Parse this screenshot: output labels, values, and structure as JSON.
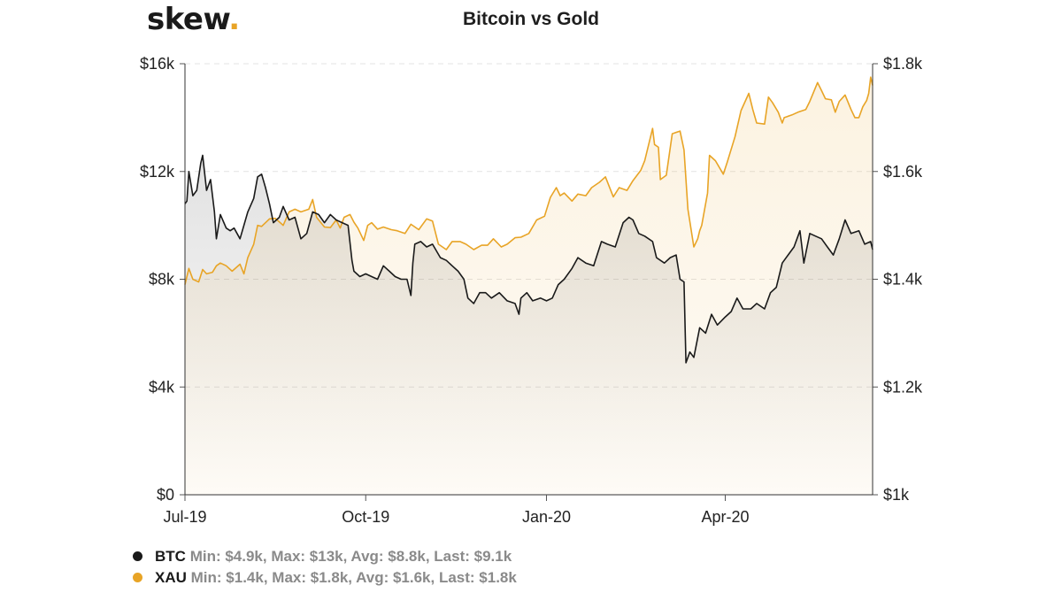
{
  "brand": {
    "name": "skew",
    "dot": ".",
    "dot_color": "#e8a426"
  },
  "chart_data": {
    "type": "line",
    "title": "Bitcoin vs Gold",
    "grid": true,
    "x_ticks": [
      "Jul-19",
      "Oct-19",
      "Jan-20",
      "Apr-20"
    ],
    "x_range": [
      "2019-07-01",
      "2020-06-15"
    ],
    "y_left": {
      "ticks": [
        "$0",
        "$4k",
        "$8k",
        "$12k",
        "$16k"
      ],
      "range": [
        0,
        16000
      ]
    },
    "y_right": {
      "ticks": [
        "$1k",
        "$1.2k",
        "$1.4k",
        "$1.6k",
        "$1.8k"
      ],
      "range": [
        1000,
        1800
      ]
    },
    "series": [
      {
        "name": "BTC",
        "axis": "left",
        "color": "#1a1a1a",
        "points": [
          [
            "2019-07-01",
            10800
          ],
          [
            "2019-07-02",
            10900
          ],
          [
            "2019-07-03",
            12000
          ],
          [
            "2019-07-05",
            11100
          ],
          [
            "2019-07-07",
            11300
          ],
          [
            "2019-07-09",
            12300
          ],
          [
            "2019-07-10",
            12600
          ],
          [
            "2019-07-12",
            11300
          ],
          [
            "2019-07-14",
            11700
          ],
          [
            "2019-07-16",
            10500
          ],
          [
            "2019-07-17",
            9500
          ],
          [
            "2019-07-19",
            10400
          ],
          [
            "2019-07-22",
            9900
          ],
          [
            "2019-07-24",
            9800
          ],
          [
            "2019-07-26",
            9900
          ],
          [
            "2019-07-29",
            9500
          ],
          [
            "2019-07-31",
            10000
          ],
          [
            "2019-08-02",
            10500
          ],
          [
            "2019-08-05",
            11000
          ],
          [
            "2019-08-07",
            11800
          ],
          [
            "2019-08-09",
            11900
          ],
          [
            "2019-08-11",
            11400
          ],
          [
            "2019-08-13",
            10800
          ],
          [
            "2019-08-15",
            10100
          ],
          [
            "2019-08-18",
            10300
          ],
          [
            "2019-08-20",
            10700
          ],
          [
            "2019-08-23",
            10200
          ],
          [
            "2019-08-26",
            10300
          ],
          [
            "2019-08-29",
            9500
          ],
          [
            "2019-09-01",
            9700
          ],
          [
            "2019-09-04",
            10500
          ],
          [
            "2019-09-07",
            10400
          ],
          [
            "2019-09-10",
            10100
          ],
          [
            "2019-09-13",
            10400
          ],
          [
            "2019-09-16",
            10200
          ],
          [
            "2019-09-19",
            10100
          ],
          [
            "2019-09-22",
            10000
          ],
          [
            "2019-09-24",
            8700
          ],
          [
            "2019-09-25",
            8300
          ],
          [
            "2019-09-28",
            8100
          ],
          [
            "2019-10-01",
            8200
          ],
          [
            "2019-10-04",
            8100
          ],
          [
            "2019-10-07",
            8000
          ],
          [
            "2019-10-10",
            8500
          ],
          [
            "2019-10-13",
            8300
          ],
          [
            "2019-10-16",
            8100
          ],
          [
            "2019-10-19",
            8000
          ],
          [
            "2019-10-22",
            8000
          ],
          [
            "2019-10-24",
            7400
          ],
          [
            "2019-10-25",
            8600
          ],
          [
            "2019-10-26",
            9300
          ],
          [
            "2019-10-29",
            9400
          ],
          [
            "2019-11-01",
            9200
          ],
          [
            "2019-11-04",
            9300
          ],
          [
            "2019-11-08",
            8800
          ],
          [
            "2019-11-11",
            8700
          ],
          [
            "2019-11-14",
            8500
          ],
          [
            "2019-11-17",
            8300
          ],
          [
            "2019-11-20",
            8000
          ],
          [
            "2019-11-22",
            7300
          ],
          [
            "2019-11-25",
            7100
          ],
          [
            "2019-11-28",
            7500
          ],
          [
            "2019-12-01",
            7500
          ],
          [
            "2019-12-04",
            7300
          ],
          [
            "2019-12-08",
            7500
          ],
          [
            "2019-12-12",
            7200
          ],
          [
            "2019-12-16",
            7100
          ],
          [
            "2019-12-18",
            6700
          ],
          [
            "2019-12-19",
            7300
          ],
          [
            "2019-12-22",
            7500
          ],
          [
            "2019-12-25",
            7200
          ],
          [
            "2019-12-29",
            7300
          ],
          [
            "2020-01-01",
            7200
          ],
          [
            "2020-01-04",
            7300
          ],
          [
            "2020-01-07",
            7800
          ],
          [
            "2020-01-10",
            8000
          ],
          [
            "2020-01-14",
            8400
          ],
          [
            "2020-01-17",
            8800
          ],
          [
            "2020-01-21",
            8600
          ],
          [
            "2020-01-25",
            8500
          ],
          [
            "2020-01-29",
            9400
          ],
          [
            "2020-02-01",
            9300
          ],
          [
            "2020-02-05",
            9200
          ],
          [
            "2020-02-09",
            10100
          ],
          [
            "2020-02-12",
            10300
          ],
          [
            "2020-02-14",
            10200
          ],
          [
            "2020-02-17",
            9700
          ],
          [
            "2020-02-20",
            9600
          ],
          [
            "2020-02-24",
            9400
          ],
          [
            "2020-02-26",
            8800
          ],
          [
            "2020-03-01",
            8600
          ],
          [
            "2020-03-04",
            8800
          ],
          [
            "2020-03-07",
            8900
          ],
          [
            "2020-03-09",
            8000
          ],
          [
            "2020-03-11",
            7900
          ],
          [
            "2020-03-12",
            4900
          ],
          [
            "2020-03-14",
            5300
          ],
          [
            "2020-03-16",
            5100
          ],
          [
            "2020-03-19",
            6200
          ],
          [
            "2020-03-22",
            6000
          ],
          [
            "2020-03-25",
            6700
          ],
          [
            "2020-03-28",
            6300
          ],
          [
            "2020-04-01",
            6600
          ],
          [
            "2020-04-04",
            6800
          ],
          [
            "2020-04-07",
            7300
          ],
          [
            "2020-04-10",
            6900
          ],
          [
            "2020-04-14",
            6900
          ],
          [
            "2020-04-17",
            7100
          ],
          [
            "2020-04-21",
            6900
          ],
          [
            "2020-04-24",
            7500
          ],
          [
            "2020-04-27",
            7700
          ],
          [
            "2020-04-30",
            8600
          ],
          [
            "2020-05-03",
            8900
          ],
          [
            "2020-05-06",
            9200
          ],
          [
            "2020-05-09",
            9800
          ],
          [
            "2020-05-11",
            8600
          ],
          [
            "2020-05-14",
            9700
          ],
          [
            "2020-05-17",
            9600
          ],
          [
            "2020-05-20",
            9500
          ],
          [
            "2020-05-23",
            9200
          ],
          [
            "2020-05-26",
            8900
          ],
          [
            "2020-05-29",
            9500
          ],
          [
            "2020-06-01",
            10200
          ],
          [
            "2020-06-04",
            9700
          ],
          [
            "2020-06-08",
            9800
          ],
          [
            "2020-06-11",
            9300
          ],
          [
            "2020-06-14",
            9400
          ],
          [
            "2020-06-15",
            9100
          ]
        ]
      },
      {
        "name": "XAU",
        "axis": "right",
        "color": "#e8a426",
        "points": [
          [
            "2019-07-01",
            1390
          ],
          [
            "2019-07-03",
            1420
          ],
          [
            "2019-07-05",
            1400
          ],
          [
            "2019-07-08",
            1395
          ],
          [
            "2019-07-10",
            1418
          ],
          [
            "2019-07-12",
            1410
          ],
          [
            "2019-07-15",
            1413
          ],
          [
            "2019-07-17",
            1425
          ],
          [
            "2019-07-19",
            1430
          ],
          [
            "2019-07-22",
            1425
          ],
          [
            "2019-07-25",
            1415
          ],
          [
            "2019-07-29",
            1428
          ],
          [
            "2019-07-31",
            1410
          ],
          [
            "2019-08-02",
            1440
          ],
          [
            "2019-08-05",
            1465
          ],
          [
            "2019-08-07",
            1500
          ],
          [
            "2019-08-09",
            1498
          ],
          [
            "2019-08-13",
            1512
          ],
          [
            "2019-08-16",
            1513
          ],
          [
            "2019-08-20",
            1500
          ],
          [
            "2019-08-23",
            1525
          ],
          [
            "2019-08-26",
            1530
          ],
          [
            "2019-08-29",
            1525
          ],
          [
            "2019-09-02",
            1530
          ],
          [
            "2019-09-04",
            1548
          ],
          [
            "2019-09-06",
            1515
          ],
          [
            "2019-09-10",
            1497
          ],
          [
            "2019-09-13",
            1496
          ],
          [
            "2019-09-16",
            1510
          ],
          [
            "2019-09-18",
            1495
          ],
          [
            "2019-09-20",
            1515
          ],
          [
            "2019-09-23",
            1520
          ],
          [
            "2019-09-25",
            1506
          ],
          [
            "2019-09-27",
            1495
          ],
          [
            "2019-09-30",
            1472
          ],
          [
            "2019-10-02",
            1500
          ],
          [
            "2019-10-04",
            1505
          ],
          [
            "2019-10-07",
            1493
          ],
          [
            "2019-10-10",
            1497
          ],
          [
            "2019-10-14",
            1492
          ],
          [
            "2019-10-17",
            1490
          ],
          [
            "2019-10-21",
            1485
          ],
          [
            "2019-10-24",
            1502
          ],
          [
            "2019-10-28",
            1492
          ],
          [
            "2019-11-01",
            1512
          ],
          [
            "2019-11-04",
            1508
          ],
          [
            "2019-11-07",
            1465
          ],
          [
            "2019-11-11",
            1455
          ],
          [
            "2019-11-14",
            1470
          ],
          [
            "2019-11-18",
            1470
          ],
          [
            "2019-11-21",
            1465
          ],
          [
            "2019-11-25",
            1455
          ],
          [
            "2019-11-29",
            1463
          ],
          [
            "2019-12-02",
            1463
          ],
          [
            "2019-12-05",
            1475
          ],
          [
            "2019-12-09",
            1460
          ],
          [
            "2019-12-12",
            1465
          ],
          [
            "2019-12-16",
            1477
          ],
          [
            "2019-12-19",
            1478
          ],
          [
            "2019-12-23",
            1485
          ],
          [
            "2019-12-27",
            1510
          ],
          [
            "2019-12-31",
            1517
          ],
          [
            "2020-01-03",
            1552
          ],
          [
            "2020-01-06",
            1570
          ],
          [
            "2020-01-08",
            1555
          ],
          [
            "2020-01-10",
            1560
          ],
          [
            "2020-01-14",
            1545
          ],
          [
            "2020-01-17",
            1558
          ],
          [
            "2020-01-21",
            1555
          ],
          [
            "2020-01-24",
            1570
          ],
          [
            "2020-01-28",
            1580
          ],
          [
            "2020-01-31",
            1590
          ],
          [
            "2020-02-04",
            1553
          ],
          [
            "2020-02-07",
            1570
          ],
          [
            "2020-02-11",
            1565
          ],
          [
            "2020-02-14",
            1583
          ],
          [
            "2020-02-18",
            1602
          ],
          [
            "2020-02-20",
            1620
          ],
          [
            "2020-02-24",
            1680
          ],
          [
            "2020-02-25",
            1650
          ],
          [
            "2020-02-27",
            1645
          ],
          [
            "2020-02-28",
            1585
          ],
          [
            "2020-03-02",
            1593
          ],
          [
            "2020-03-05",
            1670
          ],
          [
            "2020-03-09",
            1675
          ],
          [
            "2020-03-11",
            1640
          ],
          [
            "2020-03-13",
            1530
          ],
          [
            "2020-03-16",
            1460
          ],
          [
            "2020-03-18",
            1475
          ],
          [
            "2020-03-19",
            1490
          ],
          [
            "2020-03-20",
            1500
          ],
          [
            "2020-03-23",
            1560
          ],
          [
            "2020-03-24",
            1630
          ],
          [
            "2020-03-27",
            1620
          ],
          [
            "2020-03-31",
            1595
          ],
          [
            "2020-04-02",
            1617
          ],
          [
            "2020-04-06",
            1665
          ],
          [
            "2020-04-09",
            1713
          ],
          [
            "2020-04-13",
            1745
          ],
          [
            "2020-04-15",
            1715
          ],
          [
            "2020-04-17",
            1690
          ],
          [
            "2020-04-21",
            1688
          ],
          [
            "2020-04-23",
            1738
          ],
          [
            "2020-04-25",
            1728
          ],
          [
            "2020-04-28",
            1710
          ],
          [
            "2020-04-30",
            1690
          ],
          [
            "2020-05-01",
            1700
          ],
          [
            "2020-05-05",
            1705
          ],
          [
            "2020-05-08",
            1710
          ],
          [
            "2020-05-12",
            1715
          ],
          [
            "2020-05-14",
            1730
          ],
          [
            "2020-05-18",
            1765
          ],
          [
            "2020-05-20",
            1750
          ],
          [
            "2020-05-22",
            1735
          ],
          [
            "2020-05-25",
            1733
          ],
          [
            "2020-05-27",
            1710
          ],
          [
            "2020-05-29",
            1730
          ],
          [
            "2020-06-01",
            1742
          ],
          [
            "2020-06-04",
            1715
          ],
          [
            "2020-06-06",
            1700
          ],
          [
            "2020-06-08",
            1700
          ],
          [
            "2020-06-10",
            1720
          ],
          [
            "2020-06-12",
            1732
          ],
          [
            "2020-06-13",
            1745
          ],
          [
            "2020-06-14",
            1775
          ],
          [
            "2020-06-15",
            1760
          ]
        ]
      }
    ],
    "legend": [
      {
        "name": "BTC",
        "color": "#1a1a1a",
        "stats": "Min: $4.9k, Max: $13k, Avg: $8.8k, Last: $9.1k"
      },
      {
        "name": "XAU",
        "color": "#e8a426",
        "stats": "Min: $1.4k, Max: $1.8k, Avg: $1.6k, Last: $1.8k"
      }
    ]
  }
}
